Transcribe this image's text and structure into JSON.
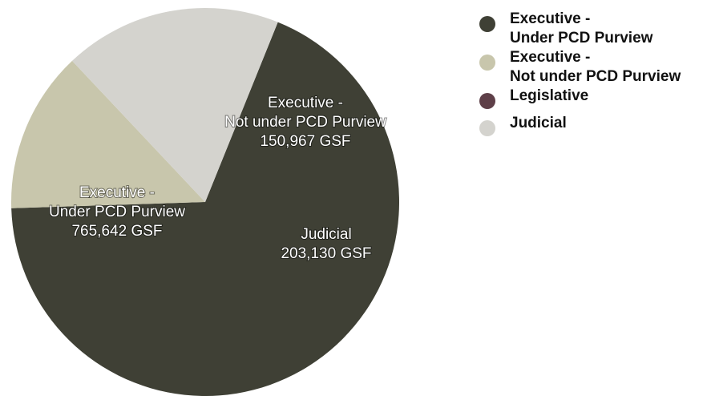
{
  "chart_data": {
    "type": "pie",
    "legend_position": "right",
    "slices": [
      {
        "name": "Executive - Under PCD Purview",
        "legend_lines": [
          "Executive -",
          "Under PCD Purview"
        ],
        "label_lines": [
          "Executive -",
          "Under PCD Purview",
          "765,642 GSF"
        ],
        "value": 765642,
        "color": "#3f4035"
      },
      {
        "name": "Executive - Not under PCD Purview",
        "legend_lines": [
          "Executive -",
          "Not under PCD Purview"
        ],
        "label_lines": [
          "Executive -",
          "Not under PCD Purview",
          "150,967 GSF"
        ],
        "value": 150967,
        "color": "#c8c6ac"
      },
      {
        "name": "Legislative",
        "legend_lines": [
          "Legislative"
        ],
        "label_lines": [],
        "value": 0,
        "color": "#5e3f48"
      },
      {
        "name": "Judicial",
        "legend_lines": [
          "Judicial"
        ],
        "label_lines": [
          "Judicial",
          "203,130 GSF"
        ],
        "value": 203130,
        "color": "#d4d3ce"
      }
    ]
  }
}
